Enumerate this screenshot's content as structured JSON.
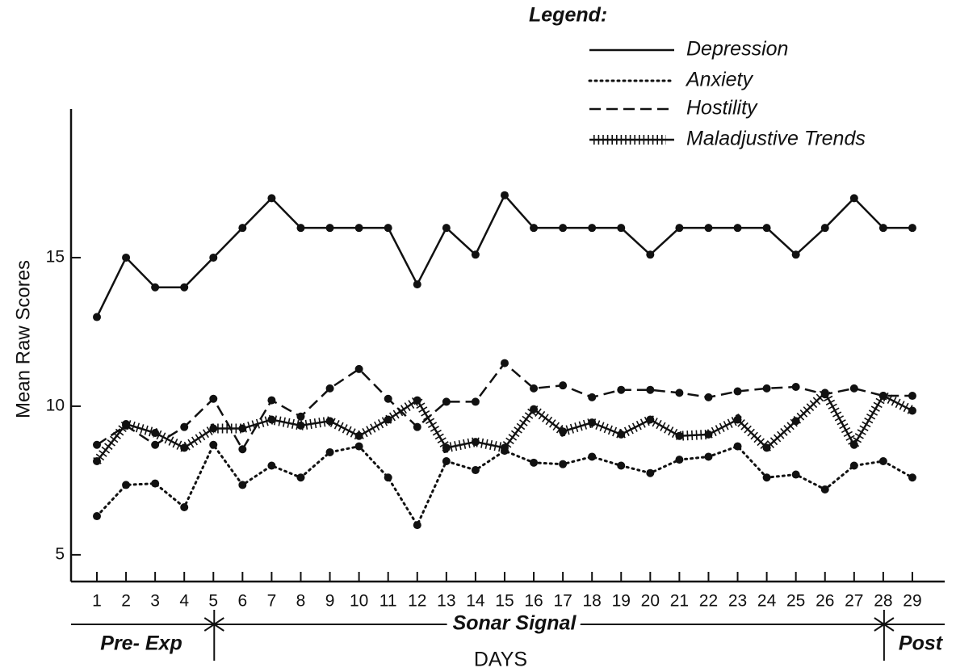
{
  "chart_data": {
    "type": "line",
    "legend_title": "Legend:",
    "ylabel": "Mean Raw Scores",
    "xlabel": "DAYS",
    "phase_labels": [
      "Pre- Exp",
      "Sonar Signal",
      "Post"
    ],
    "categories": [
      "1",
      "2",
      "3",
      "4",
      "5",
      "6",
      "7",
      "8",
      "9",
      "10",
      "11",
      "12",
      "13",
      "14",
      "15",
      "16",
      "17",
      "18",
      "19",
      "20",
      "21",
      "22",
      "23",
      "24",
      "25",
      "26",
      "27",
      "28",
      "29"
    ],
    "ylim": [
      4.1,
      20
    ],
    "yticks": [
      5,
      10,
      15
    ],
    "series": [
      {
        "name": "Depression",
        "color": "#111",
        "style": "solid",
        "values": [
          13.0,
          15.0,
          14.0,
          14.0,
          15.0,
          16.0,
          17.0,
          16.0,
          16.0,
          16.0,
          16.0,
          14.1,
          16.0,
          15.1,
          17.1,
          16.0,
          16.0,
          16.0,
          16.0,
          15.1,
          16.0,
          16.0,
          16.0,
          16.0,
          15.1,
          16.0,
          17.0,
          16.0,
          16.0
        ]
      },
      {
        "name": "Anxiety",
        "color": "#111",
        "style": "dotted",
        "values": [
          6.3,
          7.35,
          7.4,
          6.6,
          8.7,
          7.35,
          8.0,
          7.6,
          8.45,
          8.65,
          7.6,
          6.0,
          8.15,
          7.85,
          8.5,
          8.1,
          8.05,
          8.3,
          8.0,
          7.75,
          8.2,
          8.3,
          8.65,
          7.6,
          7.7,
          7.2,
          8.0,
          8.15,
          7.6
        ]
      },
      {
        "name": "Hostility",
        "color": "#111",
        "style": "dashed",
        "values": [
          8.7,
          9.35,
          8.7,
          9.3,
          10.25,
          8.55,
          10.2,
          9.65,
          10.6,
          11.25,
          10.25,
          9.3,
          10.15,
          10.15,
          11.45,
          10.6,
          10.7,
          10.3,
          10.55,
          10.55,
          10.45,
          10.3,
          10.5,
          10.6,
          10.65,
          10.4,
          10.6,
          10.35,
          10.35
        ]
      },
      {
        "name": "Maladjustive Trends",
        "color": "#111",
        "style": "hatched",
        "values": [
          8.15,
          9.4,
          9.1,
          8.6,
          9.25,
          9.25,
          9.55,
          9.35,
          9.5,
          9.0,
          9.55,
          10.2,
          8.6,
          8.8,
          8.6,
          9.9,
          9.15,
          9.45,
          9.05,
          9.55,
          9.0,
          9.05,
          9.55,
          8.6,
          9.5,
          10.45,
          8.7,
          10.35,
          9.85
        ]
      }
    ]
  }
}
